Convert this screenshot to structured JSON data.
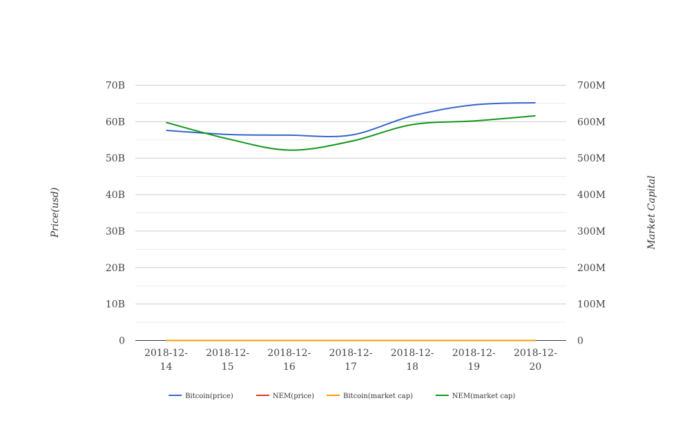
{
  "chart_data": {
    "type": "line",
    "title": "",
    "categories": [
      "2018-12-14",
      "2018-12-15",
      "2018-12-16",
      "2018-12-17",
      "2018-12-18",
      "2018-12-19",
      "2018-12-20"
    ],
    "category_lines": [
      [
        "2018-12-",
        "14"
      ],
      [
        "2018-12-",
        "15"
      ],
      [
        "2018-12-",
        "16"
      ],
      [
        "2018-12-",
        "17"
      ],
      [
        "2018-12-",
        "18"
      ],
      [
        "2018-12-",
        "19"
      ],
      [
        "2018-12-",
        "20"
      ]
    ],
    "y_left": {
      "label": "Price(usd)",
      "min": 0,
      "max": 70000000000,
      "ticks": [
        0,
        10000000000,
        20000000000,
        30000000000,
        40000000000,
        50000000000,
        60000000000,
        70000000000
      ],
      "tick_labels": [
        "0",
        "10B",
        "20B",
        "30B",
        "40B",
        "50B",
        "60B",
        "70B"
      ]
    },
    "y_right": {
      "label": "Market Capital",
      "min": 0,
      "max": 700000000,
      "ticks": [
        0,
        100000000,
        200000000,
        300000000,
        400000000,
        500000000,
        600000000,
        700000000
      ],
      "tick_labels": [
        "0",
        "100M",
        "200M",
        "300M",
        "400M",
        "500M",
        "600M",
        "700M"
      ]
    },
    "grid": true,
    "legend_position": "bottom",
    "series": [
      {
        "name": "Bitcoin(price)",
        "axis": "left",
        "color": "#3366cc",
        "values": [
          57600000000,
          56500000000,
          56300000000,
          56300000000,
          61600000000,
          64600000000,
          65200000000
        ]
      },
      {
        "name": "NEM(price)",
        "axis": "left",
        "color": "#dc3912",
        "values": [
          0,
          0,
          0,
          0,
          0,
          0,
          0
        ]
      },
      {
        "name": "Bitcoin(market cap)",
        "axis": "left",
        "color": "#ff9900",
        "values": [
          0,
          0,
          0,
          0,
          0,
          0,
          0
        ]
      },
      {
        "name": "NEM(market cap)",
        "axis": "right",
        "color": "#109618",
        "values": [
          598000000,
          553000000,
          522000000,
          546000000,
          592000000,
          602000000,
          616000000
        ]
      }
    ]
  }
}
